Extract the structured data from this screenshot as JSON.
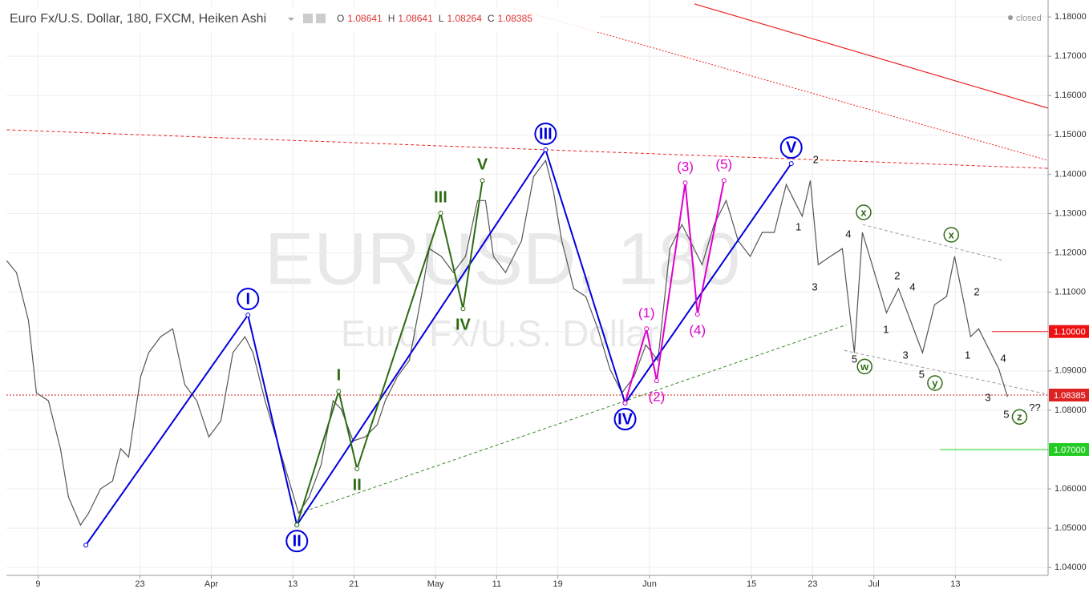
{
  "header": {
    "title": "Euro Fx/U.S. Dollar, 180, FXCM, Heiken Ashi",
    "ohlc": [
      {
        "key": "O",
        "value": "1.08641"
      },
      {
        "key": "H",
        "value": "1.08641"
      },
      {
        "key": "L",
        "value": "1.08264"
      },
      {
        "key": "C",
        "value": "1.08385"
      }
    ],
    "status": "closed"
  },
  "watermark": {
    "symbol": "EURUSD, 180",
    "description": "Euro Fx/U.S. Dollar"
  },
  "chart_data": {
    "type": "line",
    "color": "#555555",
    "grid": true,
    "xlim": [
      -3.1,
      99.1
    ],
    "ylim": [
      1.038,
      1.1843
    ],
    "xticks": [
      {
        "value": 0,
        "label": "9"
      },
      {
        "value": 10,
        "label": "23"
      },
      {
        "value": 17,
        "label": "Apr"
      },
      {
        "value": 25,
        "label": "13"
      },
      {
        "value": 31,
        "label": "21"
      },
      {
        "value": 39,
        "label": "May"
      },
      {
        "value": 45,
        "label": "11"
      },
      {
        "value": 51,
        "label": "19"
      },
      {
        "value": 60,
        "label": "Jun"
      },
      {
        "value": 70,
        "label": "15"
      },
      {
        "value": 76,
        "label": "23"
      },
      {
        "value": 82,
        "label": "Jul"
      },
      {
        "value": 90,
        "label": "13"
      }
    ],
    "yticks": [
      {
        "value": 1.04,
        "label": "1.04000"
      },
      {
        "value": 1.05,
        "label": "1.05000"
      },
      {
        "value": 1.06,
        "label": "1.06000"
      },
      {
        "value": 1.07,
        "label": "1.07000"
      },
      {
        "value": 1.08,
        "label": "1.08000"
      },
      {
        "value": 1.09,
        "label": "1.09000"
      },
      {
        "value": 1.1,
        "label": "1.10000"
      },
      {
        "value": 1.11,
        "label": "1.11000"
      },
      {
        "value": 1.12,
        "label": "1.12000"
      },
      {
        "value": 1.13,
        "label": "1.13000"
      },
      {
        "value": 1.14,
        "label": "1.14000"
      },
      {
        "value": 1.15,
        "label": "1.15000"
      },
      {
        "value": 1.16,
        "label": "1.16000"
      },
      {
        "value": 1.17,
        "label": "1.17000"
      },
      {
        "value": 1.18,
        "label": "1.18000"
      }
    ],
    "x": [
      -3.07,
      -2.12,
      -0.94,
      -0.16,
      1.02,
      2.2,
      2.99,
      4.17,
      4.96,
      6.14,
      7.32,
      8.1,
      8.89,
      10.07,
      10.86,
      12.04,
      13.22,
      14.4,
      15.58,
      16.76,
      17.94,
      19.12,
      20.3,
      21.09,
      22.27,
      23.45,
      24.63,
      25.57,
      26.59,
      27.77,
      28.95,
      29.74,
      30.92,
      32.1,
      33.28,
      34.07,
      35.25,
      36.43,
      37.61,
      38.39,
      39.57,
      40.75,
      41.94,
      43.12,
      43.9,
      44.69,
      45.87,
      47.44,
      48.62,
      49.8,
      50.59,
      51.38,
      52.56,
      53.74,
      54.92,
      56.1,
      57.28,
      58.46,
      59.64,
      60.82,
      62,
      63.18,
      63.97,
      65.15,
      66.33,
      67.51,
      68.69,
      69.87,
      71.05,
      72.23,
      73.41,
      74.19,
      74.98,
      75.77,
      76.55,
      77.73,
      78.91,
      80.09,
      80.88,
      82.06,
      83.24,
      84.42,
      85.6,
      86.78,
      87.96,
      89.14,
      89.93,
      90.72,
      91.5,
      92.29,
      93.47,
      94.26,
      95.12
    ],
    "values": [
      1.118,
      1.115,
      1.1028,
      1.0844,
      1.0824,
      1.0702,
      1.0579,
      1.0508,
      1.0538,
      1.06,
      1.062,
      1.0702,
      1.0681,
      1.0885,
      1.0946,
      1.0987,
      1.1007,
      1.0865,
      1.0824,
      1.0732,
      1.0773,
      1.0946,
      1.0987,
      1.0946,
      1.0824,
      1.0722,
      1.062,
      1.0538,
      1.0579,
      1.0661,
      1.0824,
      1.0803,
      1.0722,
      1.0732,
      1.0763,
      1.0824,
      1.0885,
      1.0926,
      1.1089,
      1.1211,
      1.1191,
      1.115,
      1.1191,
      1.1333,
      1.1333,
      1.1191,
      1.115,
      1.1231,
      1.1394,
      1.1435,
      1.1354,
      1.1231,
      1.1109,
      1.1089,
      1.1007,
      1.0905,
      1.0844,
      1.0885,
      1.0966,
      1.0926,
      1.1211,
      1.1272,
      1.1231,
      1.117,
      1.1272,
      1.1333,
      1.1231,
      1.1191,
      1.1252,
      1.1252,
      1.1374,
      1.1333,
      1.1293,
      1.1384,
      1.117,
      1.1191,
      1.1211,
      1.0946,
      1.1252,
      1.115,
      1.1048,
      1.1109,
      1.1028,
      1.0946,
      1.1068,
      1.1089,
      1.1191,
      1.1089,
      1.0987,
      1.1007,
      1.0946,
      1.0905,
      1.0834
    ],
    "waves": [
      {
        "color": "#0000dd",
        "style": "circle",
        "x": [
          4.7,
          20.6,
          25.4,
          49.8,
          57.6,
          73.9
        ],
        "values": [
          1.0457,
          1.1042,
          1.0508,
          1.1462,
          1.0818,
          1.1427
        ],
        "labels": [
          null,
          "I",
          "II",
          "III",
          "IV",
          "V"
        ]
      },
      {
        "color": "#2e6b12",
        "style": "bold",
        "x": [
          25.4,
          29.5,
          31.3,
          39.5,
          41.7,
          43.6
        ],
        "values": [
          1.0508,
          1.0848,
          1.0651,
          1.1301,
          1.1058,
          1.1384
        ],
        "labels": [
          null,
          "I",
          "II",
          "III",
          "IV",
          "V"
        ]
      },
      {
        "color": "#dd00cc",
        "style": "plain",
        "x": [
          57.6,
          59.7,
          60.7,
          63.5,
          64.7,
          67.3
        ],
        "values": [
          1.0818,
          1.1007,
          1.0875,
          1.1378,
          1.1044,
          1.1384
        ],
        "labels": [
          null,
          "(1)",
          "(2)",
          "(3)",
          "(4)",
          "(5)"
        ]
      }
    ],
    "lines": [
      {
        "color": "#ee2222",
        "dash": "solid",
        "x": [
          64.4,
          99.1
        ],
        "values": [
          1.1833,
          1.1568
        ]
      },
      {
        "color": "#ee2222",
        "dash": "dotted",
        "x": [
          46.7,
          99.1
        ],
        "values": [
          1.1822,
          1.1435
        ]
      },
      {
        "color": "#ee2222",
        "dash": "dashed",
        "x": [
          -3.07,
          99.1
        ],
        "values": [
          1.1513,
          1.1415
        ]
      },
      {
        "color": "#3a8a2a",
        "dash": "dashed",
        "x": [
          25.6,
          79.3
        ],
        "values": [
          1.0538,
          1.1017
        ]
      },
      {
        "color": "#999999",
        "dash": "dashed",
        "x": [
          80.9,
          94.8
        ],
        "values": [
          1.1272,
          1.118
        ]
      },
      {
        "color": "#999999",
        "dash": "dashed",
        "x": [
          79.1,
          99.1
        ],
        "values": [
          1.0952,
          1.084
        ]
      }
    ],
    "levels": [
      {
        "value": 1.1,
        "label": "1.10000",
        "color": "#ee1111",
        "from": 93.6,
        "dash": "solid"
      },
      {
        "value": 1.08385,
        "label": "1.08385",
        "color": "#dd2222",
        "from": -3.1,
        "dash": "dotted"
      },
      {
        "value": 1.07,
        "label": "1.07000",
        "color": "#22cc22",
        "from": 88.5,
        "dash": "solid"
      }
    ],
    "annotations": [
      {
        "text": "1",
        "x": 74.6,
        "y": 1.1266,
        "circled": false
      },
      {
        "text": "2",
        "x": 76.3,
        "y": 1.1437,
        "circled": false
      },
      {
        "text": "3",
        "x": 76.2,
        "y": 1.1113,
        "circled": false
      },
      {
        "text": "4",
        "x": 79.5,
        "y": 1.1248,
        "circled": false
      },
      {
        "text": "5",
        "x": 80.1,
        "y": 1.093,
        "circled": false
      },
      {
        "text": "1",
        "x": 83.2,
        "y": 1.1005,
        "circled": false
      },
      {
        "text": "2",
        "x": 84.3,
        "y": 1.1142,
        "circled": false
      },
      {
        "text": "3",
        "x": 85.1,
        "y": 1.094,
        "circled": false
      },
      {
        "text": "4",
        "x": 85.8,
        "y": 1.1113,
        "circled": false
      },
      {
        "text": "5",
        "x": 86.7,
        "y": 1.0891,
        "circled": false
      },
      {
        "text": "1",
        "x": 91.2,
        "y": 1.094,
        "circled": false
      },
      {
        "text": "2",
        "x": 92.1,
        "y": 1.1101,
        "circled": false
      },
      {
        "text": "3",
        "x": 93.2,
        "y": 1.0832,
        "circled": false
      },
      {
        "text": "4",
        "x": 94.7,
        "y": 1.0932,
        "circled": false
      },
      {
        "text": "5",
        "x": 95.0,
        "y": 1.0789,
        "circled": false
      },
      {
        "text": "??",
        "x": 97.8,
        "y": 1.0807,
        "circled": false
      },
      {
        "text": "x",
        "x": 81.0,
        "y": 1.1303,
        "circled": true
      },
      {
        "text": "w",
        "x": 81.1,
        "y": 1.0911,
        "circled": true
      },
      {
        "text": "y",
        "x": 88.0,
        "y": 1.0869,
        "circled": true
      },
      {
        "text": "x",
        "x": 89.6,
        "y": 1.1246,
        "circled": true
      },
      {
        "text": "z",
        "x": 96.3,
        "y": 1.0783,
        "circled": true
      }
    ]
  }
}
